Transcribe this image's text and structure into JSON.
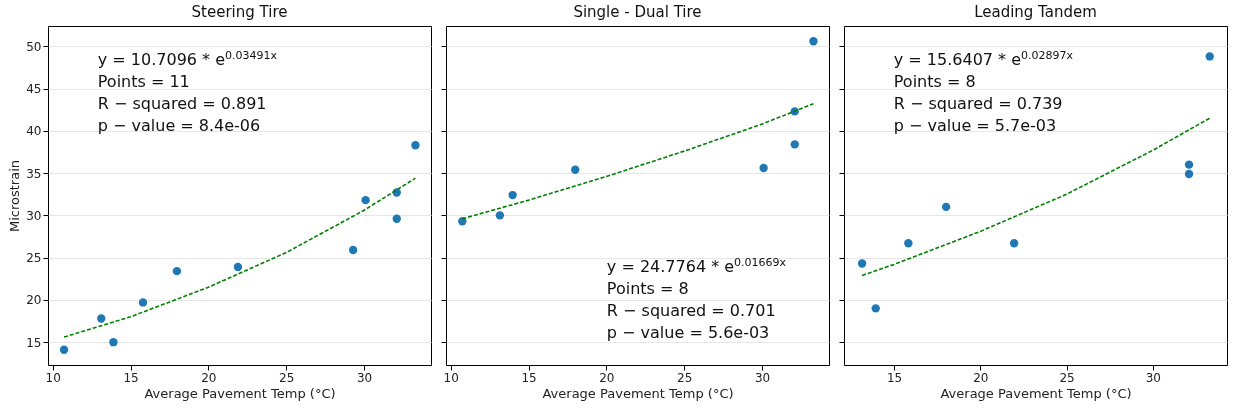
{
  "chart_data": [
    {
      "type": "scatter",
      "title": "Steering Tire",
      "xlabel": "Average Pavement Temp (°C)",
      "ylabel": "Microstrain",
      "xlim": [
        9.7,
        34.3
      ],
      "xticks": [
        10,
        15,
        20,
        25,
        30
      ],
      "ylim": [
        12.3,
        52.4
      ],
      "yticks": [
        15,
        20,
        25,
        30,
        35,
        40,
        45,
        50
      ],
      "grid": "y",
      "annotations": [
        "y = 10.7096 * e$^{0.03491x}$",
        "Points = 11",
        "R − squared = 0.891",
        "p − value = 8.4e-06"
      ],
      "series": [
        {
          "marker": "circle",
          "color": "#1f77b4",
          "x": [
            10.73,
            13.12,
            13.9,
            15.8,
            17.98,
            21.9,
            29.3,
            30.1,
            32.1,
            32.1,
            33.3
          ],
          "values": [
            14.1,
            17.8,
            15.0,
            19.7,
            23.4,
            23.9,
            25.9,
            31.8,
            32.7,
            29.6,
            38.3
          ]
        },
        {
          "type": "line",
          "color": "#008000",
          "line_style": "dashed",
          "x": [
            10.73,
            15,
            20,
            25,
            30,
            33.3
          ],
          "values": [
            15.6,
            18.0,
            21.5,
            25.6,
            30.6,
            34.4
          ]
        }
      ]
    },
    {
      "type": "scatter",
      "title": "Single - Dual Tire",
      "xlabel": "Average Pavement Temp (°C)",
      "xlim": [
        9.7,
        34.3
      ],
      "xticks": [
        10,
        15,
        20,
        25,
        30
      ],
      "ylim": [
        12.3,
        52.4
      ],
      "yticks": [
        15,
        20,
        25,
        30,
        35,
        40,
        45,
        50
      ],
      "tick_labels": "x",
      "grid": "y",
      "annotations": [
        "y = 24.7764 * e$^{0.01669x}$",
        "Points = 8",
        "R − squared = 0.701",
        "p − value = 5.6e-03"
      ],
      "series": [
        {
          "marker": "circle",
          "color": "#1f77b4",
          "x": [
            10.75,
            13.16,
            13.98,
            18.0,
            30.1,
            32.1,
            32.1,
            33.3
          ],
          "values": [
            29.3,
            30.0,
            32.4,
            35.4,
            35.6,
            38.4,
            42.3,
            50.6
          ]
        },
        {
          "type": "line",
          "color": "#008000",
          "line_style": "dashed",
          "x": [
            10.75,
            15,
            20,
            25,
            30,
            33.3
          ],
          "values": [
            29.6,
            31.8,
            34.6,
            37.6,
            40.8,
            43.2
          ]
        }
      ]
    },
    {
      "type": "scatter",
      "title": "Leading Tandem",
      "xlabel": "Average Pavement Temp (°C)",
      "xlim": [
        12.1,
        34.3
      ],
      "xticks": [
        15,
        20,
        25,
        30
      ],
      "ylim": [
        12.3,
        52.4
      ],
      "yticks": [
        15,
        20,
        25,
        30,
        35,
        40,
        45,
        50
      ],
      "tick_labels": "x",
      "grid": "y",
      "annotations": [
        "y = 15.6407 * e$^{0.02897x}$",
        "Points = 8",
        "R − squared = 0.739",
        "p − value = 5.7e-03"
      ],
      "series": [
        {
          "marker": "circle",
          "color": "#1f77b4",
          "x": [
            13.15,
            13.94,
            15.83,
            18.02,
            21.96,
            32.1,
            32.1,
            33.3
          ],
          "values": [
            24.3,
            19.0,
            26.7,
            31.0,
            26.7,
            34.9,
            36.0,
            48.8
          ]
        },
        {
          "type": "line",
          "color": "#008000",
          "line_style": "dashed",
          "x": [
            13.15,
            15,
            20,
            25,
            30,
            33.3
          ],
          "values": [
            22.9,
            24.2,
            28.1,
            32.5,
            37.7,
            41.5
          ]
        }
      ]
    }
  ]
}
